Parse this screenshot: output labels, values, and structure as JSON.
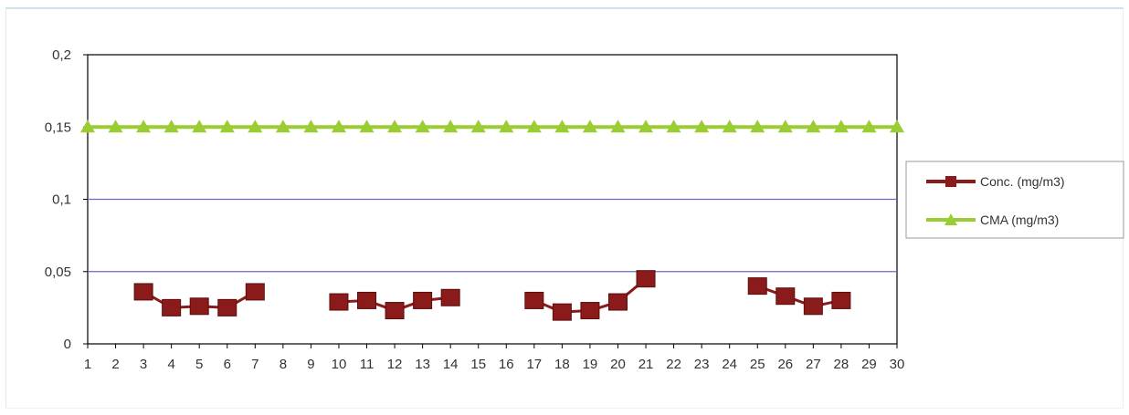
{
  "chart_data": {
    "type": "line",
    "title": "",
    "xlabel": "",
    "ylabel": "",
    "categories": [
      1,
      2,
      3,
      4,
      5,
      6,
      7,
      8,
      9,
      10,
      11,
      12,
      13,
      14,
      15,
      16,
      17,
      18,
      19,
      20,
      21,
      22,
      23,
      24,
      25,
      26,
      27,
      28,
      29,
      30
    ],
    "y_tick_labels": [
      "0",
      "0,05",
      "0,1",
      "0,15",
      "0,2"
    ],
    "y_ticks": [
      0,
      0.05,
      0.1,
      0.15,
      0.2
    ],
    "ylim": [
      0,
      0.2
    ],
    "grid": "horizontal",
    "legend_position": "right",
    "series": [
      {
        "name": "Conc. (mg/m3)",
        "color": "#8b1a1a",
        "marker": "square",
        "values": [
          null,
          null,
          0.036,
          0.025,
          0.026,
          0.025,
          0.036,
          null,
          null,
          0.029,
          0.03,
          0.023,
          0.03,
          0.032,
          null,
          null,
          0.03,
          0.022,
          0.023,
          0.029,
          0.045,
          null,
          null,
          null,
          0.04,
          0.033,
          0.026,
          0.03,
          null,
          null
        ]
      },
      {
        "name": "CMA (mg/m3)",
        "color": "#9acd32",
        "marker": "triangle",
        "values": [
          0.15,
          0.15,
          0.15,
          0.15,
          0.15,
          0.15,
          0.15,
          0.15,
          0.15,
          0.15,
          0.15,
          0.15,
          0.15,
          0.15,
          0.15,
          0.15,
          0.15,
          0.15,
          0.15,
          0.15,
          0.15,
          0.15,
          0.15,
          0.15,
          0.15,
          0.15,
          0.15,
          0.15,
          0.15,
          0.15
        ]
      }
    ]
  }
}
